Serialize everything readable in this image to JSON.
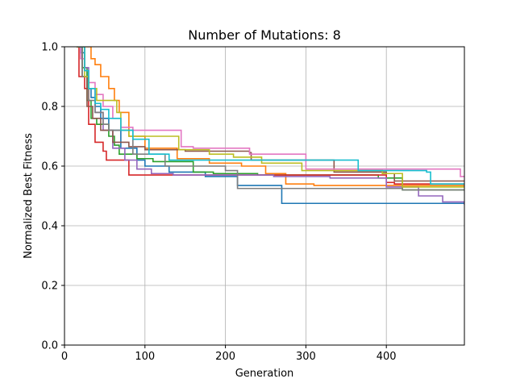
{
  "chart_data": {
    "type": "line",
    "title": "Number of Mutations: 8",
    "xlabel": "Generation",
    "ylabel": "Normalized Best Fitness",
    "xlim": [
      0,
      497
    ],
    "ylim": [
      0.0,
      1.0
    ],
    "xticks": [
      0,
      100,
      200,
      300,
      400
    ],
    "yticks": [
      0.0,
      0.2,
      0.4,
      0.6,
      0.8,
      1.0
    ],
    "xtick_labels": [
      "0",
      "100",
      "200",
      "300",
      "400"
    ],
    "ytick_labels": [
      "0.0",
      "0.2",
      "0.4",
      "0.6",
      "0.8",
      "1.0"
    ],
    "grid": true,
    "series": [
      {
        "color": "#1f77b4",
        "points": [
          [
            15,
            1.0
          ],
          [
            20,
            0.98
          ],
          [
            25,
            0.92
          ],
          [
            28,
            0.86
          ],
          [
            33,
            0.83
          ],
          [
            38,
            0.8
          ],
          [
            45,
            0.76
          ],
          [
            55,
            0.72
          ],
          [
            70,
            0.66
          ],
          [
            90,
            0.62
          ],
          [
            100,
            0.6
          ],
          [
            130,
            0.58
          ],
          [
            175,
            0.565
          ],
          [
            215,
            0.535
          ],
          [
            268,
            0.535
          ],
          [
            270,
            0.475
          ],
          [
            497,
            0.475
          ]
        ]
      },
      {
        "color": "#ff7f0e",
        "points": [
          [
            17,
            1.0
          ],
          [
            28,
            1.0
          ],
          [
            33,
            0.96
          ],
          [
            38,
            0.94
          ],
          [
            45,
            0.9
          ],
          [
            55,
            0.86
          ],
          [
            62,
            0.82
          ],
          [
            68,
            0.78
          ],
          [
            80,
            0.7
          ],
          [
            100,
            0.66
          ],
          [
            140,
            0.625
          ],
          [
            180,
            0.61
          ],
          [
            220,
            0.6
          ],
          [
            250,
            0.575
          ],
          [
            275,
            0.54
          ],
          [
            310,
            0.535
          ],
          [
            420,
            0.535
          ],
          [
            497,
            0.535
          ]
        ]
      },
      {
        "color": "#2ca02c",
        "points": [
          [
            15,
            1.0
          ],
          [
            22,
            0.93
          ],
          [
            28,
            0.82
          ],
          [
            33,
            0.76
          ],
          [
            40,
            0.74
          ],
          [
            55,
            0.7
          ],
          [
            62,
            0.67
          ],
          [
            68,
            0.64
          ],
          [
            90,
            0.625
          ],
          [
            110,
            0.615
          ],
          [
            160,
            0.58
          ],
          [
            185,
            0.575
          ],
          [
            240,
            0.57
          ],
          [
            320,
            0.57
          ],
          [
            390,
            0.56
          ],
          [
            420,
            0.52
          ],
          [
            497,
            0.52
          ]
        ]
      },
      {
        "color": "#d62728",
        "points": [
          [
            15,
            1.0
          ],
          [
            18,
            0.9
          ],
          [
            25,
            0.86
          ],
          [
            30,
            0.74
          ],
          [
            38,
            0.68
          ],
          [
            48,
            0.65
          ],
          [
            52,
            0.62
          ],
          [
            70,
            0.62
          ],
          [
            80,
            0.57
          ],
          [
            120,
            0.57
          ],
          [
            220,
            0.57
          ],
          [
            380,
            0.57
          ],
          [
            400,
            0.545
          ],
          [
            410,
            0.54
          ],
          [
            497,
            0.54
          ]
        ]
      },
      {
        "color": "#9467bd",
        "points": [
          [
            18,
            1.0
          ],
          [
            25,
            0.93
          ],
          [
            30,
            0.86
          ],
          [
            38,
            0.78
          ],
          [
            48,
            0.72
          ],
          [
            60,
            0.66
          ],
          [
            75,
            0.62
          ],
          [
            90,
            0.59
          ],
          [
            108,
            0.575
          ],
          [
            135,
            0.57
          ],
          [
            200,
            0.57
          ],
          [
            260,
            0.565
          ],
          [
            330,
            0.56
          ],
          [
            400,
            0.53
          ],
          [
            440,
            0.5
          ],
          [
            470,
            0.48
          ],
          [
            497,
            0.47
          ]
        ]
      },
      {
        "color": "#8c564b",
        "points": [
          [
            15,
            1.0
          ],
          [
            22,
            0.9
          ],
          [
            28,
            0.8
          ],
          [
            35,
            0.76
          ],
          [
            45,
            0.72
          ],
          [
            60,
            0.68
          ],
          [
            80,
            0.665
          ],
          [
            100,
            0.655
          ],
          [
            150,
            0.65
          ],
          [
            230,
            0.645
          ],
          [
            232,
            0.62
          ],
          [
            330,
            0.62
          ],
          [
            335,
            0.58
          ],
          [
            400,
            0.575
          ],
          [
            410,
            0.55
          ],
          [
            497,
            0.55
          ]
        ]
      },
      {
        "color": "#e377c2",
        "points": [
          [
            17,
            1.0
          ],
          [
            20,
            0.96
          ],
          [
            25,
            0.92
          ],
          [
            30,
            0.88
          ],
          [
            38,
            0.84
          ],
          [
            48,
            0.8
          ],
          [
            60,
            0.76
          ],
          [
            70,
            0.73
          ],
          [
            85,
            0.72
          ],
          [
            120,
            0.72
          ],
          [
            145,
            0.665
          ],
          [
            160,
            0.66
          ],
          [
            230,
            0.64
          ],
          [
            300,
            0.59
          ],
          [
            420,
            0.59
          ],
          [
            490,
            0.59
          ],
          [
            492,
            0.565
          ],
          [
            497,
            0.565
          ]
        ]
      },
      {
        "color": "#7f7f7f",
        "points": [
          [
            15,
            1.0
          ],
          [
            22,
            0.9
          ],
          [
            30,
            0.82
          ],
          [
            38,
            0.78
          ],
          [
            48,
            0.74
          ],
          [
            55,
            0.72
          ],
          [
            75,
            0.72
          ],
          [
            85,
            0.64
          ],
          [
            125,
            0.6
          ],
          [
            200,
            0.585
          ],
          [
            215,
            0.525
          ],
          [
            380,
            0.525
          ],
          [
            420,
            0.52
          ],
          [
            497,
            0.52
          ]
        ]
      },
      {
        "color": "#bcbd22",
        "points": [
          [
            15,
            1.0
          ],
          [
            25,
            0.9
          ],
          [
            30,
            0.86
          ],
          [
            40,
            0.82
          ],
          [
            55,
            0.82
          ],
          [
            65,
            0.78
          ],
          [
            70,
            0.72
          ],
          [
            80,
            0.7
          ],
          [
            140,
            0.7
          ],
          [
            142,
            0.655
          ],
          [
            180,
            0.64
          ],
          [
            210,
            0.63
          ],
          [
            245,
            0.61
          ],
          [
            295,
            0.585
          ],
          [
            380,
            0.585
          ],
          [
            395,
            0.575
          ],
          [
            420,
            0.53
          ],
          [
            497,
            0.53
          ]
        ]
      },
      {
        "color": "#17becf",
        "points": [
          [
            18,
            1.0
          ],
          [
            25,
            0.92
          ],
          [
            30,
            0.86
          ],
          [
            38,
            0.81
          ],
          [
            45,
            0.79
          ],
          [
            55,
            0.76
          ],
          [
            70,
            0.72
          ],
          [
            85,
            0.69
          ],
          [
            105,
            0.64
          ],
          [
            130,
            0.62
          ],
          [
            250,
            0.62
          ],
          [
            362,
            0.62
          ],
          [
            365,
            0.585
          ],
          [
            450,
            0.58
          ],
          [
            455,
            0.54
          ],
          [
            497,
            0.54
          ]
        ]
      }
    ]
  }
}
